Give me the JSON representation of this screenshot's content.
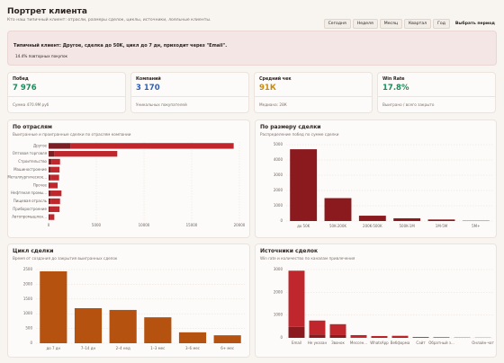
{
  "header": {
    "title": "Портрет клиента",
    "subtitle": "Кто наш типичный клиент: отрасли, размеры сделок, циклы, источники, лояльные клиенты."
  },
  "period_buttons": [
    "Сегодня",
    "Неделя",
    "Месяц",
    "Квартал",
    "Год"
  ],
  "custom_period": "Выбрать период",
  "banner": {
    "text": "Типичный клиент: Другое, сделка до 50K, цикл до 7 дн, приходит через \"Email\".",
    "note": "14.4% повторных покупок"
  },
  "kpis": [
    {
      "label": "Побед",
      "value": "7 976",
      "note": "Сумма 470.9М руб",
      "color": "#1f8a5b"
    },
    {
      "label": "Компаний",
      "value": "3 170",
      "note": "Уникальных покупателей",
      "color": "#2f5fb3"
    },
    {
      "label": "Средний чек",
      "value": "91К",
      "note": "Медиана: 28К",
      "color": "#c98a0a"
    },
    {
      "label": "Win Rate",
      "value": "17.8%",
      "note": "Выиграно / всего закрыто",
      "color": "#1f8a5b"
    }
  ],
  "chart_data": [
    {
      "type": "hbar",
      "title": "По отраслям",
      "subtitle": "Выигранные и проигранные сделки по отраслям компании",
      "categories": [
        "Другое",
        "Оптовая торговля",
        "Строительство",
        "Машиностроение",
        "Металлургическое...",
        "Прочее",
        "Нефтяная промы...",
        "Пищевая отрасль",
        "Приборостроение",
        "Автопромышлен..."
      ],
      "series": [
        {
          "color": "#7a1f24",
          "values": [
            2300,
            600,
            300,
            250,
            200,
            150,
            250,
            200,
            150,
            100
          ]
        },
        {
          "color": "#c0272d",
          "values": [
            17100,
            6600,
            900,
            900,
            900,
            800,
            1100,
            1000,
            1000,
            500
          ]
        }
      ],
      "xlim": [
        0,
        20000
      ],
      "xticks": [
        0,
        5000,
        10000,
        15000,
        20000
      ],
      "grid": true
    },
    {
      "type": "vbar",
      "title": "По размеру сделки",
      "subtitle": "Распределение побед по сумме сделки",
      "categories": [
        "до 50K",
        "50K-200K",
        "200K-500K",
        "500K-1M",
        "1M-5M",
        "5M+"
      ],
      "series": [
        {
          "color": "#8b1a1f",
          "values": [
            4700,
            1500,
            350,
            180,
            100,
            20
          ]
        }
      ],
      "ylim": [
        0,
        5000
      ],
      "yticks": [
        0,
        1000,
        2000,
        3000,
        4000,
        5000
      ],
      "grid": true
    },
    {
      "type": "vbar",
      "title": "Цикл сделки",
      "subtitle": "Время от создания до закрытия выигранных сделок",
      "categories": [
        "до 7 дн",
        "7–14 дн",
        "2–4 нед",
        "1–3 мес",
        "3–6 мес",
        "6+ мес"
      ],
      "series": [
        {
          "color": "#b5520f",
          "values": [
            2440,
            1190,
            1130,
            880,
            370,
            270
          ]
        }
      ],
      "ylim": [
        0,
        2500
      ],
      "yticks": [
        0,
        500,
        1000,
        1500,
        2000,
        2500
      ],
      "grid": true
    },
    {
      "type": "vbar",
      "title": "Источники сделок",
      "subtitle": "Win rate и количество по каналам привлечения",
      "categories": [
        "Email",
        "Не указан",
        "Звонок",
        "Мессен...",
        "WhatsApp",
        "Вебформа",
        "Сайт",
        "Обратный з...",
        null,
        "Онлайн-чат"
      ],
      "series": [
        {
          "color": "#8b1a1f",
          "values": [
            480,
            150,
            120,
            30,
            20,
            20,
            10,
            5,
            3,
            2
          ]
        },
        {
          "color": "#c0272d",
          "values": [
            2470,
            610,
            480,
            90,
            60,
            70,
            30,
            25,
            12,
            8
          ]
        }
      ],
      "ylim": [
        0,
        3000
      ],
      "yticks": [
        0,
        1000,
        2000,
        3000
      ],
      "grid": true
    }
  ]
}
